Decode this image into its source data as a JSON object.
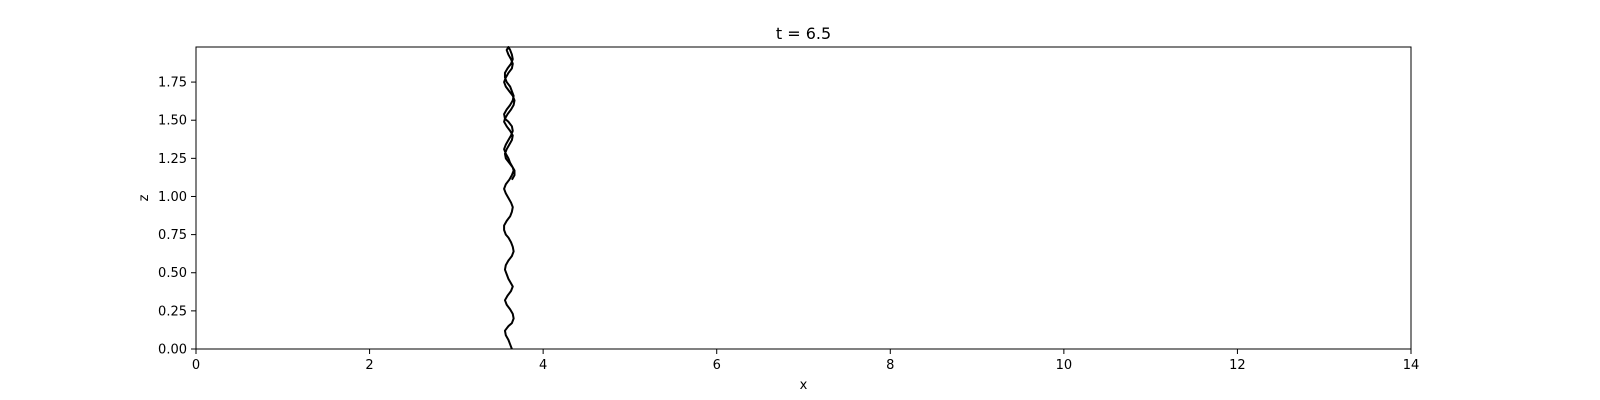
{
  "chart_data": {
    "type": "line",
    "title": "t = 6.5",
    "xlabel": "x",
    "ylabel": "z",
    "xlim": [
      0,
      14
    ],
    "ylim": [
      0,
      1.98
    ],
    "grid": false,
    "legend": "none",
    "line_color": "#000000",
    "x_ticks": [
      {
        "value": 0,
        "label": "0"
      },
      {
        "value": 2,
        "label": "2"
      },
      {
        "value": 4,
        "label": "4"
      },
      {
        "value": 6,
        "label": "6"
      },
      {
        "value": 8,
        "label": "8"
      },
      {
        "value": 10,
        "label": "10"
      },
      {
        "value": 12,
        "label": "12"
      },
      {
        "value": 14,
        "label": "14"
      }
    ],
    "y_ticks": [
      {
        "value": 0,
        "label": "0.00"
      },
      {
        "value": 0.25,
        "label": "0.25"
      },
      {
        "value": 0.5,
        "label": "0.50"
      },
      {
        "value": 0.75,
        "label": "0.75"
      },
      {
        "value": 1.0,
        "label": "1.00"
      },
      {
        "value": 1.25,
        "label": "1.25"
      },
      {
        "value": 1.5,
        "label": "1.50"
      },
      {
        "value": 1.75,
        "label": "1.75"
      }
    ],
    "series": [
      {
        "x": [
          3.64,
          3.62,
          3.6,
          3.57,
          3.56,
          3.6,
          3.64,
          3.66,
          3.65,
          3.62,
          3.58,
          3.56,
          3.59,
          3.63,
          3.65,
          3.63,
          3.6,
          3.58,
          3.56,
          3.57,
          3.6,
          3.64,
          3.66,
          3.65,
          3.63,
          3.6,
          3.57,
          3.55,
          3.55,
          3.58,
          3.62,
          3.64,
          3.65,
          3.63,
          3.6,
          3.57,
          3.55,
          3.57,
          3.61,
          3.64,
          3.66,
          3.65,
          3.62,
          3.6,
          3.57,
          3.55,
          3.57,
          3.6,
          3.63,
          3.65,
          3.64,
          3.6,
          3.56,
          3.55,
          3.58,
          3.62,
          3.65,
          3.66,
          3.64,
          3.62,
          3.58,
          3.56,
          3.56,
          3.59,
          3.63,
          3.65,
          3.64,
          3.62,
          3.6,
          3.58,
          3.6,
          3.63,
          3.65,
          3.64,
          3.6,
          3.57,
          3.55,
          3.57,
          3.61,
          3.65,
          3.67,
          3.66,
          3.63,
          3.59,
          3.56,
          3.55,
          3.58,
          3.62,
          3.65,
          3.64,
          3.61,
          3.58,
          3.56,
          3.57,
          3.61,
          3.65,
          3.67,
          3.67,
          3.64
        ],
        "y": [
          0.0,
          0.03,
          0.06,
          0.09,
          0.12,
          0.15,
          0.17,
          0.2,
          0.23,
          0.26,
          0.29,
          0.32,
          0.35,
          0.38,
          0.41,
          0.43,
          0.46,
          0.49,
          0.52,
          0.55,
          0.58,
          0.61,
          0.64,
          0.67,
          0.7,
          0.73,
          0.75,
          0.78,
          0.81,
          0.84,
          0.87,
          0.9,
          0.93,
          0.96,
          0.99,
          1.02,
          1.05,
          1.08,
          1.11,
          1.14,
          1.17,
          1.19,
          1.22,
          1.25,
          1.28,
          1.31,
          1.34,
          1.37,
          1.4,
          1.43,
          1.46,
          1.49,
          1.51,
          1.54,
          1.57,
          1.6,
          1.63,
          1.66,
          1.69,
          1.72,
          1.75,
          1.78,
          1.81,
          1.84,
          1.87,
          1.9,
          1.93,
          1.96,
          1.98,
          1.96,
          1.93,
          1.9,
          1.87,
          1.84,
          1.81,
          1.78,
          1.75,
          1.72,
          1.69,
          1.66,
          1.63,
          1.6,
          1.57,
          1.54,
          1.51,
          1.49,
          1.46,
          1.43,
          1.4,
          1.37,
          1.34,
          1.31,
          1.28,
          1.25,
          1.22,
          1.19,
          1.17,
          1.14,
          1.11
        ]
      }
    ]
  }
}
